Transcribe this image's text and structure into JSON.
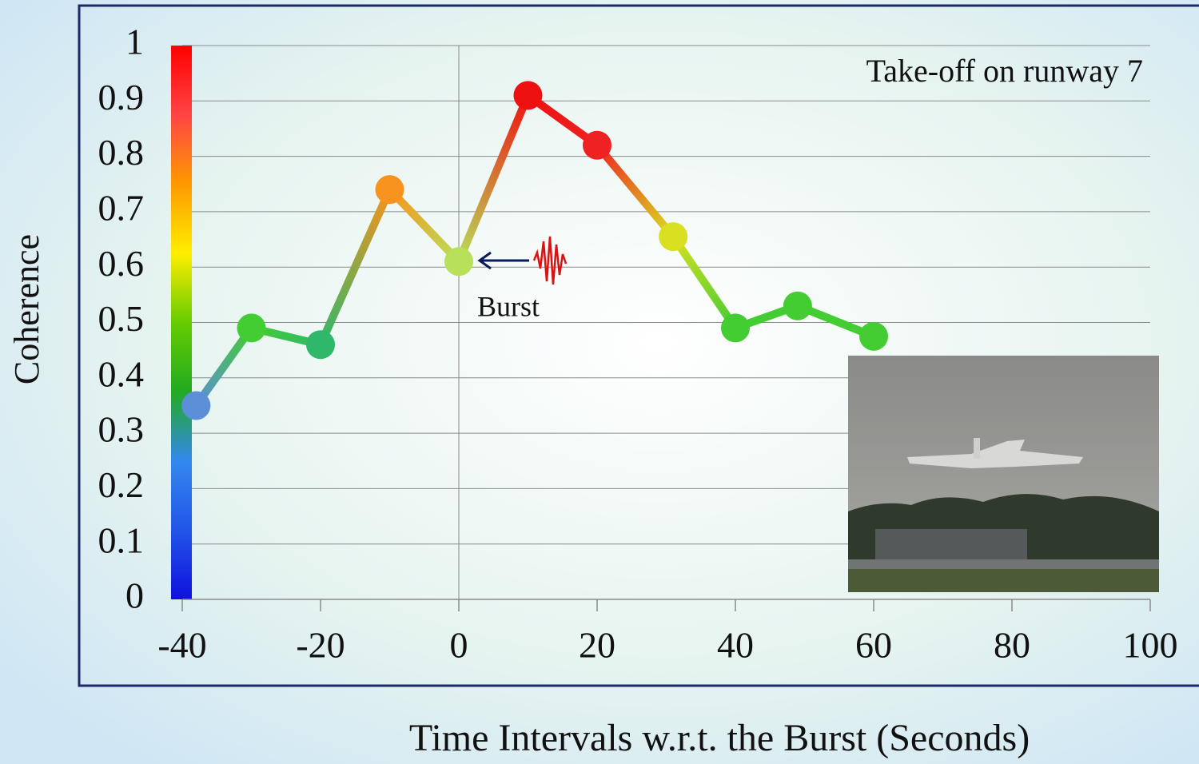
{
  "chart_data": {
    "type": "line",
    "xlabel": "Time Intervals w.r.t. the Burst (Seconds)",
    "ylabel": "Coherence",
    "annotations": [
      "Take-off on runway 7",
      "Burst"
    ],
    "x": [
      -38,
      -30,
      -20,
      -10,
      0,
      10,
      20,
      31,
      40,
      49,
      60
    ],
    "values": [
      0.35,
      0.49,
      0.46,
      0.74,
      0.61,
      0.91,
      0.82,
      0.655,
      0.49,
      0.53,
      0.475
    ],
    "colors": [
      "#5b8fd8",
      "#44cc33",
      "#2fb86a",
      "#f7931e",
      "#b8e05a",
      "#ee1111",
      "#ee2222",
      "#d8e020",
      "#44cc33",
      "#44cc33",
      "#44cc33"
    ],
    "colorbar_colors": [
      "#1010dd",
      "#2255e8",
      "#3388ee",
      "#22aa22",
      "#66cc00",
      "#ffee00",
      "#ff9900",
      "#ff4444",
      "#ff0000"
    ],
    "xlim": [
      -40,
      100
    ],
    "xticks": [
      -40,
      -20,
      0,
      20,
      40,
      60,
      80,
      100
    ],
    "ylim": [
      0,
      1
    ],
    "yticks": [
      0,
      0.1,
      0.2,
      0.3,
      0.4,
      0.5,
      0.6,
      0.7,
      0.8,
      0.9,
      1
    ],
    "grid": "y"
  }
}
